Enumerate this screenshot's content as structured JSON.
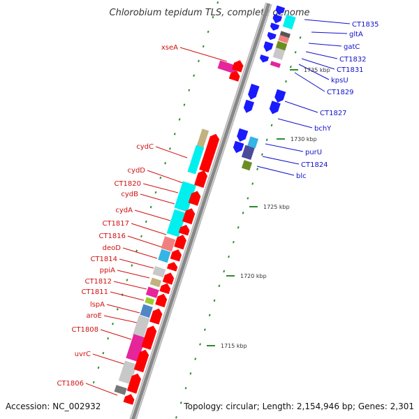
{
  "title": "Chlorobium tepidum TLS, complete genome",
  "accession": "Accession: NC_002932",
  "topology": "Topology: circular; Length: 2,154,946 bp; Genes: 2,301",
  "scale_labels": [
    "1735 kbp",
    "1730 kbp",
    "1725 kbp",
    "1720 kbp",
    "1715 kbp"
  ],
  "left_labels": [
    "xseA",
    "cydC",
    "cydD",
    "CT1820",
    "cydB",
    "cydA",
    "CT1817",
    "CT1816",
    "deoD",
    "CT1814",
    "ppiA",
    "CT1812",
    "CT1811",
    "lspA",
    "aroE",
    "CT1808",
    "uvrC",
    "CT1806"
  ],
  "right_labels": [
    "CT1835",
    "gltA",
    "gatC",
    "CT1832",
    "CT1831",
    "kpsU",
    "CT1829",
    "CT1827",
    "bchY",
    "purU",
    "CT1824",
    "blc"
  ],
  "colors": {
    "label_left": "#d01010",
    "label_right": "#1010cc",
    "forward": "#ff0000",
    "reverse": "#1a1aff",
    "backbone": "#888888",
    "tick": "#2e8b2e",
    "magenta": "#e6259a",
    "cyan": "#00f0f0",
    "grey": "#c8c8c8",
    "tan": "#c2b280",
    "salmon": "#f08080",
    "steel": "#4f86c6",
    "green": "#9acd32",
    "olive": "#6b8e23",
    "slate": "#4b4b9a",
    "skyblue": "#33b5e5"
  }
}
